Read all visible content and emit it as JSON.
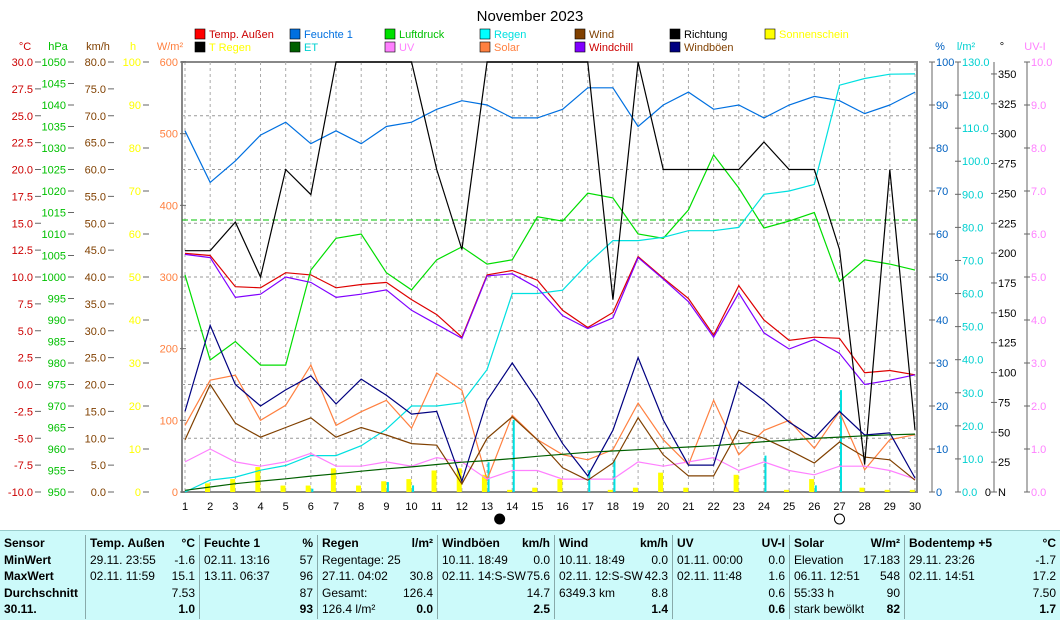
{
  "chart_data": {
    "type": "line",
    "title": "November 2023",
    "x": [
      1,
      2,
      3,
      4,
      5,
      6,
      7,
      8,
      9,
      10,
      11,
      12,
      13,
      14,
      15,
      16,
      17,
      18,
      19,
      20,
      21,
      22,
      23,
      24,
      25,
      26,
      27,
      28,
      29,
      30
    ],
    "axes": [
      {
        "id": "temp",
        "unit": "°C",
        "range": [
          -10,
          30
        ],
        "step": 2.5,
        "decimals": 1,
        "side": "left",
        "color": "#cc0000"
      },
      {
        "id": "press",
        "unit": "hPa",
        "range": [
          950,
          1050
        ],
        "step": 5,
        "decimals": 0,
        "side": "left",
        "color": "#00c000"
      },
      {
        "id": "wind",
        "unit": "km/h",
        "range": [
          0,
          80
        ],
        "step": 5,
        "decimals": 1,
        "side": "left",
        "color": "#804000"
      },
      {
        "id": "sun",
        "unit": "h",
        "range": [
          0,
          100
        ],
        "step": 10,
        "decimals": 0,
        "side": "left",
        "color": "#ffff00"
      },
      {
        "id": "solar",
        "unit": "W/m²",
        "range": [
          0,
          600
        ],
        "step": 100,
        "decimals": 0,
        "side": "left",
        "color": "#ff8040"
      },
      {
        "id": "hum",
        "unit": "%",
        "range": [
          0,
          100
        ],
        "step": 10,
        "decimals": 0,
        "side": "right",
        "color": "#0060c0"
      },
      {
        "id": "rain",
        "unit": "l/m²",
        "range": [
          0,
          130
        ],
        "step": 10,
        "decimals": 1,
        "side": "right",
        "color": "#00d0d0"
      },
      {
        "id": "dir",
        "unit": "°",
        "range": [
          0,
          360
        ],
        "step": 25,
        "decimals": 0,
        "side": "right",
        "color": "#000000",
        "zero_label": "N"
      },
      {
        "id": "uv",
        "unit": "UV-I",
        "range": [
          0,
          10
        ],
        "step": 1,
        "decimals": 1,
        "side": "right",
        "color": "#ff80ff"
      }
    ],
    "pressure_reference": 1013.25,
    "series": [
      {
        "name": "Temp. Außen",
        "axis": "temp",
        "color": "#dd0000",
        "values": [
          12.2,
          12.0,
          9.1,
          9.0,
          10.4,
          10.2,
          9.0,
          9.3,
          9.5,
          7.9,
          6.5,
          4.4,
          10.2,
          10.6,
          9.7,
          6.9,
          5.3,
          6.7,
          11.9,
          9.9,
          8.0,
          4.6,
          9.2,
          6.0,
          4.1,
          4.4,
          4.3,
          1.1,
          1.3,
          0.9
        ]
      },
      {
        "name": "Feuchte 1",
        "axis": "hum",
        "color": "#0070e0",
        "values": [
          84,
          72,
          77,
          83,
          86,
          81,
          84,
          81,
          85,
          86,
          89,
          91,
          90,
          87,
          87,
          89,
          94,
          94,
          85,
          90,
          93,
          89,
          90,
          87,
          90,
          92,
          91,
          88,
          90,
          93
        ]
      },
      {
        "name": "Luftdruck",
        "axis": "press",
        "color": "#00dd00",
        "values": [
          1000.5,
          980.7,
          985,
          979.5,
          979.5,
          1001.6,
          1009,
          1010,
          1001,
          997,
          1004,
          1007,
          1003,
          1004,
          1014,
          1013,
          1019.5,
          1018.4,
          1010,
          1009,
          1015.6,
          1028.4,
          1020.7,
          1011.4,
          1013,
          1015,
          999,
          1004,
          1003,
          1001.6
        ]
      },
      {
        "name": "Regen",
        "axis": "rain",
        "color": "#00e0e0",
        "values": [
          0,
          3.6,
          4.5,
          6.6,
          8,
          11,
          11,
          14,
          19,
          26,
          26,
          27,
          37,
          60,
          60,
          61,
          69,
          76,
          76,
          77,
          79,
          79,
          80,
          90,
          91,
          93,
          123,
          125,
          126.3,
          126.4
        ]
      },
      {
        "name": "Solar",
        "axis": "solar",
        "color": "#ff8040",
        "values": [
          93,
          156,
          163,
          100,
          121,
          177,
          93,
          112,
          128,
          89,
          166,
          142,
          17,
          107,
          73,
          52,
          45,
          59,
          124,
          73,
          38,
          128,
          52,
          86,
          100,
          61,
          112,
          31,
          73,
          80
        ]
      },
      {
        "name": "UV",
        "axis": "uv",
        "color": "#ff80ff",
        "values": [
          0.7,
          1.0,
          0.7,
          0.6,
          0.7,
          0.9,
          0.6,
          0.6,
          0.7,
          0.6,
          0.8,
          0.7,
          0.3,
          0.5,
          0.5,
          0.3,
          0.3,
          0.3,
          0.7,
          0.6,
          0.7,
          0.8,
          0.5,
          0.7,
          0.5,
          0.4,
          0.6,
          0.6,
          0.5,
          0.3
        ]
      },
      {
        "name": "Wind",
        "axis": "wind",
        "color": "#804000",
        "values": [
          9.7,
          20,
          12.8,
          10.2,
          12,
          13.8,
          10.2,
          12,
          10.6,
          9,
          8.7,
          1.5,
          10,
          14,
          9.7,
          4.5,
          2.2,
          5.4,
          13.8,
          6.9,
          3,
          3,
          11.5,
          10,
          7.8,
          5.4,
          9.3,
          6.5,
          6,
          2.2
        ]
      },
      {
        "name": "Windchill",
        "axis": "temp",
        "color": "#8000ff",
        "values": [
          12.1,
          11.8,
          8.1,
          8.4,
          10.0,
          9.5,
          8.1,
          8.4,
          8.8,
          6.9,
          5.6,
          4.3,
          10.1,
          10.3,
          9.0,
          6.4,
          5.2,
          6.2,
          11.8,
          9.8,
          7.7,
          4.4,
          8.5,
          4.8,
          3.3,
          4.2,
          2.9,
          0.0,
          0.4,
          0.9
        ]
      },
      {
        "name": "Richtung",
        "axis": "dir",
        "color": "#000000",
        "values": [
          202,
          202,
          226,
          180,
          270,
          249,
          360,
          360,
          360,
          360,
          270,
          203,
          360,
          360,
          360,
          360,
          360,
          161,
          360,
          270,
          270,
          270,
          270,
          293,
          270,
          270,
          203,
          23,
          270,
          52
        ]
      },
      {
        "name": "Windböen",
        "axis": "wind",
        "color": "#000080",
        "values": [
          15,
          31,
          20,
          16,
          19,
          21.6,
          16.4,
          21,
          18,
          14.5,
          15,
          2,
          17,
          24,
          17,
          9,
          3,
          11.5,
          25,
          13.4,
          5,
          5,
          20.5,
          17,
          13,
          10,
          15,
          10.6,
          11,
          2.6
        ]
      },
      {
        "name": "ET",
        "axis": "rain",
        "color": "#006000",
        "values": [
          0.5,
          1.5,
          2.5,
          3.3,
          4.0,
          4.8,
          5.5,
          6.3,
          7.0,
          7.6,
          8.3,
          9.0,
          9.5,
          10.1,
          10.8,
          11.4,
          12,
          12.4,
          12.8,
          13.2,
          13.6,
          14.0,
          14.6,
          15.2,
          15.7,
          16.2,
          16.6,
          17.0,
          17.3,
          17.5
        ]
      }
    ],
    "bars": [
      {
        "name": "T Regen",
        "axis": "rain",
        "color": "#00e0e0",
        "values": [
          0,
          0,
          0,
          0,
          0,
          1,
          0,
          0,
          3,
          2,
          0,
          0,
          9,
          21.8,
          0,
          0,
          6.6,
          9.6,
          0,
          0,
          0,
          0,
          0,
          11,
          0,
          2,
          30.8,
          0,
          0,
          0
        ]
      },
      {
        "name": "Sonnenschein",
        "axis": "sun",
        "color": "#ffff00",
        "values": [
          2,
          3,
          5.8,
          1.5,
          1.5,
          5.5,
          1.5,
          2.5,
          3,
          5,
          5.5,
          4,
          0.5,
          1,
          3,
          0,
          0.5,
          1,
          4.5,
          1,
          0,
          4,
          0,
          0.5,
          3,
          0,
          1,
          0.5,
          0.5,
          0
        ]
      }
    ],
    "legend": [
      {
        "label": "Temp. Außen",
        "box": "#ff0000",
        "text": "#cc0000"
      },
      {
        "label": "T Regen",
        "box": "#000000",
        "text": "#ffff00"
      },
      {
        "label": "Feuchte 1",
        "box": "#0070e0",
        "text": "#0070e0"
      },
      {
        "label": "ET",
        "box": "#006000",
        "text": "#00d0d0"
      },
      {
        "label": "Luftdruck",
        "box": "#00e000",
        "text": "#00c000"
      },
      {
        "label": "UV",
        "box": "#ff80ff",
        "text": "#ff80ff"
      },
      {
        "label": "Regen",
        "box": "#00ffff",
        "text": "#00e0e0"
      },
      {
        "label": "Solar",
        "box": "#ff8040",
        "text": "#ff8040"
      },
      {
        "label": "Wind",
        "box": "#804000",
        "text": "#804000"
      },
      {
        "label": "Windchill",
        "box": "#8000ff",
        "text": "#cc0000"
      },
      {
        "label": "Richtung",
        "box": "#000000",
        "text": "#000000"
      },
      {
        "label": "Windböen",
        "box": "#000080",
        "text": "#804000"
      },
      {
        "label": "Sonnenschein",
        "box": "#ffff00",
        "text": "#ffff00"
      }
    ],
    "moon_phases": [
      {
        "day": 13.5,
        "phase": "new"
      },
      {
        "day": 27,
        "phase": "full"
      }
    ]
  },
  "stats": {
    "columns": [
      {
        "rows": [
          [
            "Sensor",
            ""
          ],
          [
            "MinWert",
            ""
          ],
          [
            "MaxWert",
            ""
          ],
          [
            "Durchschnitt",
            ""
          ],
          [
            "30.11.",
            ""
          ]
        ]
      },
      {
        "rows": [
          [
            "Temp. Außen",
            "°C"
          ],
          [
            "29.11.  23:55",
            "-1.6"
          ],
          [
            "02.11.  11:59",
            "15.1"
          ],
          [
            "",
            "7.53"
          ],
          [
            "",
            "1.0"
          ]
        ]
      },
      {
        "rows": [
          [
            "Feuchte 1",
            "%"
          ],
          [
            "02.11.  13:16",
            "57"
          ],
          [
            "13.11.  06:37",
            "96"
          ],
          [
            "",
            "87"
          ],
          [
            "",
            "93"
          ]
        ]
      },
      {
        "rows": [
          [
            "Regen",
            "l/m²"
          ],
          [
            "Regentage: 25",
            ""
          ],
          [
            "27.11.  04:02",
            "30.8"
          ],
          [
            "Gesamt:",
            "126.4"
          ],
          [
            " 126.4 l/m²",
            "0.0"
          ]
        ]
      },
      {
        "rows": [
          [
            "Windböen",
            "km/h"
          ],
          [
            "10.11.  18:49",
            "0.0"
          ],
          [
            "02.11.  14:S-SW",
            "75.6"
          ],
          [
            "",
            "14.7"
          ],
          [
            "",
            "2.5"
          ]
        ]
      },
      {
        "rows": [
          [
            "Wind",
            "km/h"
          ],
          [
            "10.11.  18:49",
            "0.0"
          ],
          [
            "02.11.  12:S-SW",
            "42.3"
          ],
          [
            "6349.3 km",
            "8.8"
          ],
          [
            "",
            "1.4"
          ]
        ]
      },
      {
        "rows": [
          [
            "UV",
            "UV-I"
          ],
          [
            "01.11.  00:00",
            "0.0"
          ],
          [
            "02.11.  11:48",
            "1.6"
          ],
          [
            "",
            "0.6"
          ],
          [
            "",
            "0.6"
          ]
        ]
      },
      {
        "rows": [
          [
            "Solar",
            "W/m²"
          ],
          [
            "Elevation",
            "17.183"
          ],
          [
            "06.11.  12:51",
            "548"
          ],
          [
            "55:33 h",
            "90"
          ],
          [
            "stark bewölkt",
            "82"
          ]
        ]
      },
      {
        "rows": [
          [
            "Bodentemp +5",
            "°C"
          ],
          [
            "29.11.  23:26",
            "-1.7"
          ],
          [
            "02.11.  14:51",
            "17.2"
          ],
          [
            "",
            "7.50"
          ],
          [
            "",
            "1.7"
          ]
        ]
      }
    ]
  }
}
